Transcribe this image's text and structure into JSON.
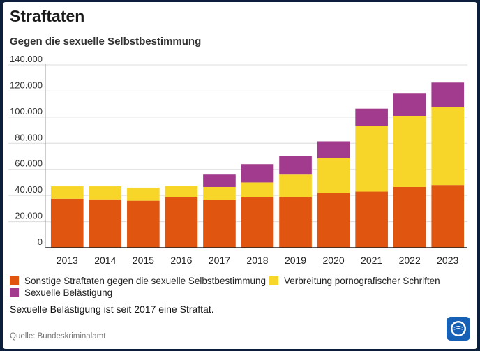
{
  "header": {
    "title": "Straftaten",
    "subtitle": "Gegen die sexuelle Selbstbestimmung"
  },
  "chart_data": {
    "type": "bar",
    "stacked": true,
    "categories": [
      "2013",
      "2014",
      "2015",
      "2016",
      "2017",
      "2018",
      "2019",
      "2020",
      "2021",
      "2022",
      "2023"
    ],
    "series": [
      {
        "name": "Sonstige Straftaten gegen die sexuelle Selbstbestimmung",
        "color": "#e0550f",
        "values": [
          37500,
          37000,
          36000,
          38500,
          36500,
          38500,
          39000,
          42000,
          43000,
          46500,
          48000
        ]
      },
      {
        "name": "Verbreitung pornografischer Schriften",
        "color": "#f7d629",
        "values": [
          9500,
          10000,
          10000,
          9000,
          10000,
          11500,
          17000,
          26500,
          50500,
          54500,
          59500
        ]
      },
      {
        "name": "Sexuelle Belästigung",
        "color": "#a23b8d",
        "values": [
          0,
          0,
          0,
          0,
          9500,
          14000,
          14000,
          13000,
          13000,
          17500,
          19000
        ]
      }
    ],
    "yticks": [
      "0",
      "20.000",
      "40.000",
      "60.000",
      "80.000",
      "100.000",
      "120.000",
      "140.000"
    ],
    "ylim": [
      0,
      140000
    ],
    "xlabel": "",
    "ylabel": "",
    "grid": true
  },
  "note": "Sexuelle Belästigung ist seit 2017 eine Straftat.",
  "source": "Quelle: Bundeskriminalamt",
  "logo_icon": "tagesschau-logo"
}
